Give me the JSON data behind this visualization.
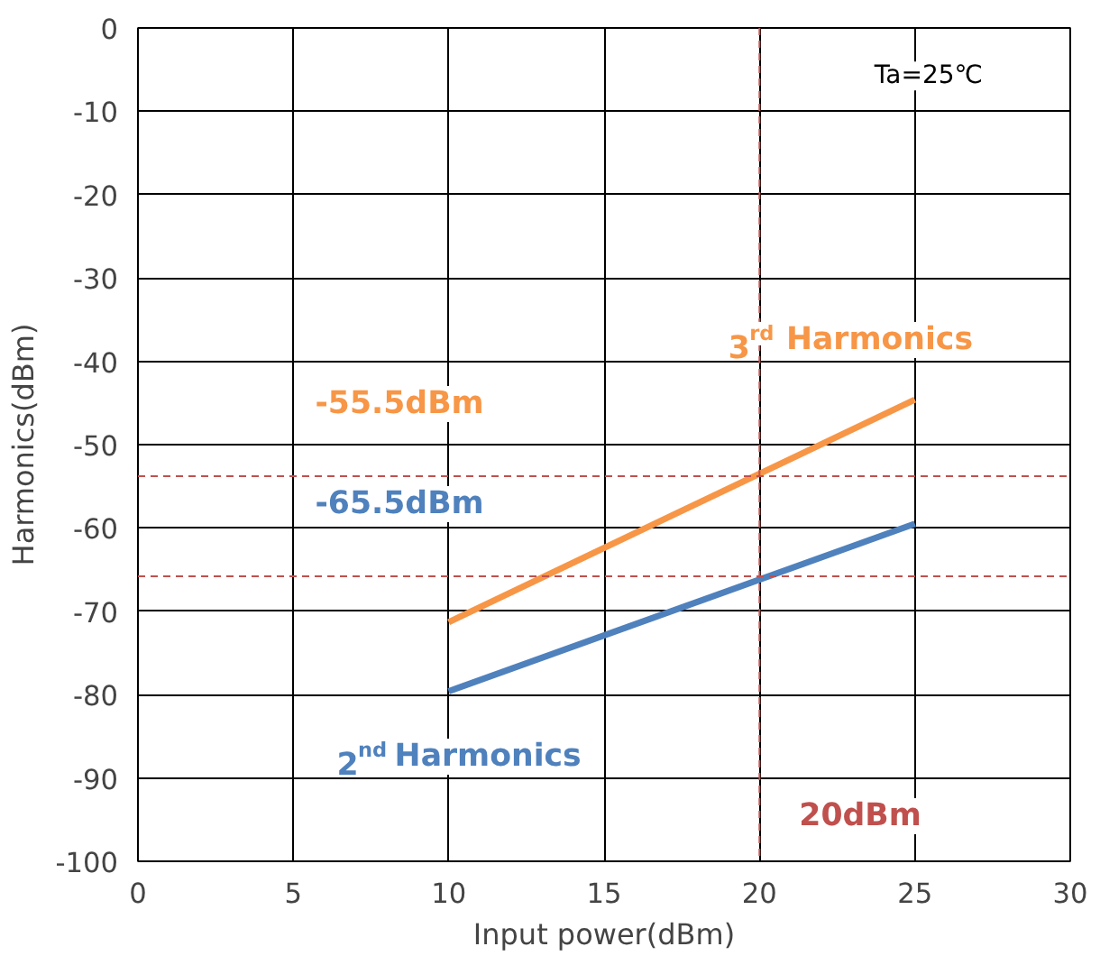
{
  "chart_data": {
    "type": "line",
    "xlabel": "Input power(dBm)",
    "ylabel": "Harmonics(dBm)",
    "x": [
      10,
      25
    ],
    "series": [
      {
        "name": "2$^{nd}$ Harmonics",
        "color": "#4f81bd",
        "values": [
          -79.6,
          -59.5
        ]
      },
      {
        "name": "3$^{rd}$ Harmonics",
        "color": "#f79646",
        "values": [
          -71.3,
          -44.6
        ]
      }
    ],
    "xlim": [
      0,
      30
    ],
    "xticks": [
      0,
      5,
      10,
      15,
      20,
      25,
      30
    ],
    "ylim": [
      -100,
      0
    ],
    "yticks": [
      -100,
      -90,
      -80,
      -70,
      -60,
      -50,
      -40,
      -30,
      -20,
      -10,
      0
    ],
    "ref_lines": [
      {
        "axis": "y",
        "value": -53.8,
        "label": "-55.5dBm",
        "color": "#c0504d",
        "line_style": "dashed"
      },
      {
        "axis": "y",
        "value": -65.8,
        "label": "-65.5dBm",
        "color": "#c0504d",
        "line_style": "dashed"
      },
      {
        "axis": "x",
        "value": 20,
        "label": "20dBm",
        "color": "#c0504d",
        "line_style": "dashed"
      }
    ],
    "annotations": [
      "Ta=25℃"
    ],
    "grid": true,
    "marker": "none",
    "line_style": "solid"
  }
}
